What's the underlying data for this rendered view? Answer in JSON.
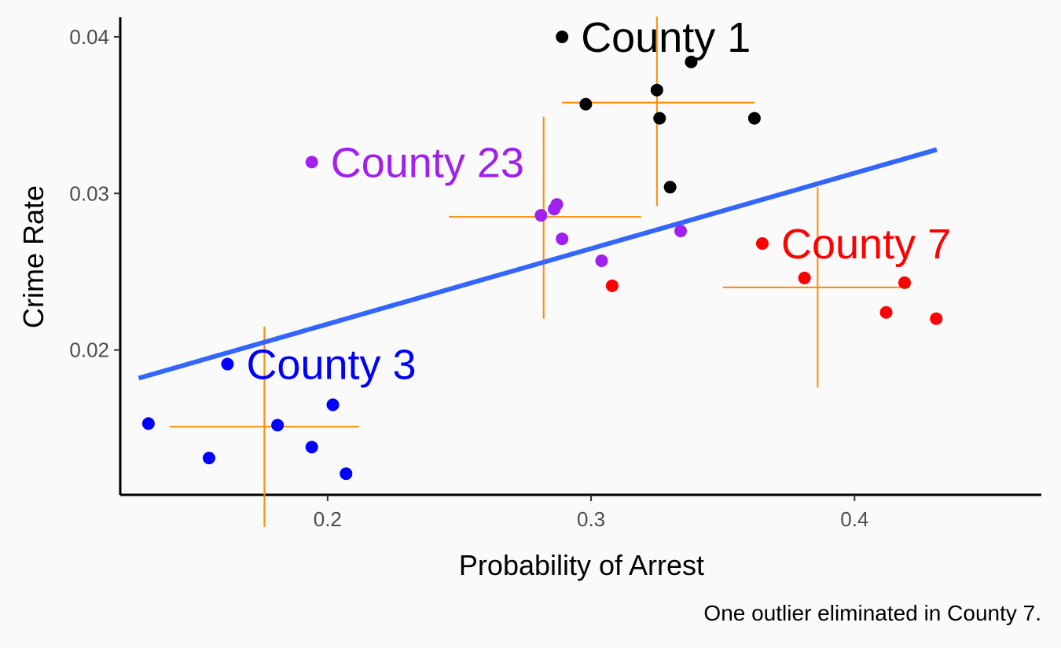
{
  "chart_data": {
    "type": "scatter",
    "xlabel": "Probability of Arrest",
    "ylabel": "Crime Rate",
    "caption": "One outlier eliminated in County 7.",
    "xlim": [
      0.1213,
      0.4709
    ],
    "ylim": [
      0.01075,
      0.04125
    ],
    "xticks": [
      {
        "value": 0.2,
        "label": "0.2"
      },
      {
        "value": 0.3,
        "label": "0.3"
      },
      {
        "value": 0.4,
        "label": "0.4"
      }
    ],
    "yticks": [
      {
        "value": 0.02,
        "label": "0.02"
      },
      {
        "value": 0.03,
        "label": "0.03"
      },
      {
        "value": 0.04,
        "label": "0.04"
      }
    ],
    "grid": false,
    "legend": "none",
    "series": [
      {
        "name": "County 1",
        "color": "#000000",
        "label": {
          "text": "County 1",
          "x": 0.289,
          "y": 0.04
        },
        "points": [
          [
            0.289,
            0.04
          ],
          [
            0.338,
            0.0384
          ],
          [
            0.298,
            0.0357
          ],
          [
            0.325,
            0.0366
          ],
          [
            0.326,
            0.0348
          ],
          [
            0.362,
            0.0348
          ],
          [
            0.33,
            0.0304
          ]
        ],
        "mean": {
          "x": 0.325,
          "y": 0.0358
        },
        "range": {
          "x": [
            0.289,
            0.362
          ],
          "y": [
            0.0292,
            0.0413
          ]
        }
      },
      {
        "name": "County 23",
        "color": "#a020f0",
        "label": {
          "text": "County 23",
          "x": 0.194,
          "y": 0.032
        },
        "points": [
          [
            0.194,
            0.032
          ],
          [
            0.287,
            0.0293
          ],
          [
            0.286,
            0.029
          ],
          [
            0.281,
            0.0286
          ],
          [
            0.289,
            0.0271
          ],
          [
            0.304,
            0.0257
          ],
          [
            0.334,
            0.0276
          ]
        ],
        "mean": {
          "x": 0.282,
          "y": 0.0285
        },
        "range": {
          "x": [
            0.246,
            0.319
          ],
          "y": [
            0.022,
            0.0349
          ]
        }
      },
      {
        "name": "County 7",
        "color": "#ff0000",
        "label": {
          "text": "County 7",
          "x": 0.365,
          "y": 0.0268
        },
        "points": [
          [
            0.365,
            0.0268
          ],
          [
            0.381,
            0.0246
          ],
          [
            0.308,
            0.0241
          ],
          [
            0.419,
            0.0243
          ],
          [
            0.412,
            0.0224
          ],
          [
            0.431,
            0.022
          ]
        ],
        "mean": {
          "x": 0.386,
          "y": 0.024
        },
        "range": {
          "x": [
            0.35,
            0.421
          ],
          "y": [
            0.0176,
            0.0304
          ]
        }
      },
      {
        "name": "County 3",
        "color": "#0000ff",
        "label": {
          "text": "County 3",
          "x": 0.162,
          "y": 0.0191
        },
        "points": [
          [
            0.162,
            0.0191
          ],
          [
            0.132,
            0.0153
          ],
          [
            0.155,
            0.0131
          ],
          [
            0.181,
            0.0152
          ],
          [
            0.194,
            0.0138
          ],
          [
            0.202,
            0.0165
          ],
          [
            0.207,
            0.0121
          ]
        ],
        "mean": {
          "x": 0.176,
          "y": 0.0151
        },
        "range": {
          "x": [
            0.14,
            0.212
          ],
          "y": [
            0.0087,
            0.0215
          ]
        }
      }
    ],
    "trend_line": {
      "color": "#3366ff",
      "x": [
        0.1283,
        0.4312
      ],
      "y": [
        0.0182,
        0.0328
      ]
    },
    "crosshair_color": "#ff8c00"
  }
}
